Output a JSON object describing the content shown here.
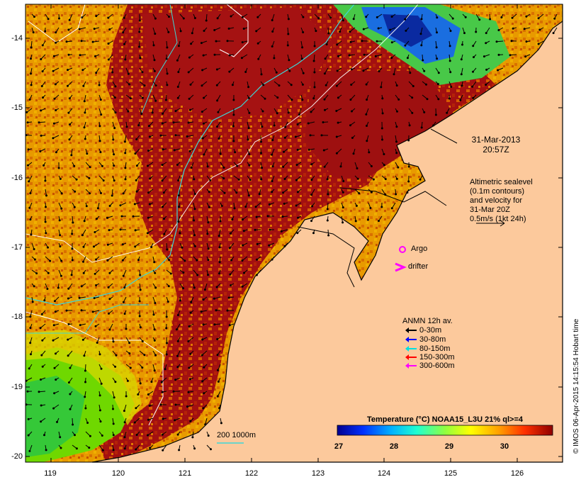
{
  "map": {
    "axes": {
      "lon_ticks": [
        "119",
        "120",
        "121",
        "122",
        "123",
        "124",
        "125",
        "126"
      ],
      "lat_ticks": [
        "-14",
        "-15",
        "-16",
        "-17",
        "-18",
        "-19",
        "-20"
      ]
    },
    "date": {
      "line1": "31-Mar-2013",
      "line2": "20:57Z"
    },
    "altimetry_note": [
      "Altimetric sealevel",
      "(0.1m contours)",
      "and velocity for",
      "31-Mar 20Z",
      "0.5m/s (1kt 24h)"
    ],
    "markers": {
      "argo": "Argo",
      "drifter": "drifter"
    },
    "depth_contours_label": "200  1000m",
    "legend": {
      "title": "ANMN 12h av.",
      "items": [
        {
          "label": "0-30m",
          "color": "#000000"
        },
        {
          "label": "30-80m",
          "color": "#0000ff"
        },
        {
          "label": "80-150m",
          "color": "#00e0e0"
        },
        {
          "label": "150-300m",
          "color": "#ff0000"
        },
        {
          "label": "300-600m",
          "color": "#ff00ff"
        }
      ]
    },
    "colorbar": {
      "title": "Temperature (°C) NOAA15_L3U 21% ql>=4",
      "ticks": [
        "27",
        "28",
        "29",
        "30"
      ]
    },
    "copyright": "© IMOS 06-Apr-2015 14:15:54 Hobart time",
    "colors": {
      "land": "#fcc99c",
      "warm": "#a50f0f",
      "mid": "#e8a000",
      "cool": "#33cc33",
      "coast": "#000000"
    }
  }
}
